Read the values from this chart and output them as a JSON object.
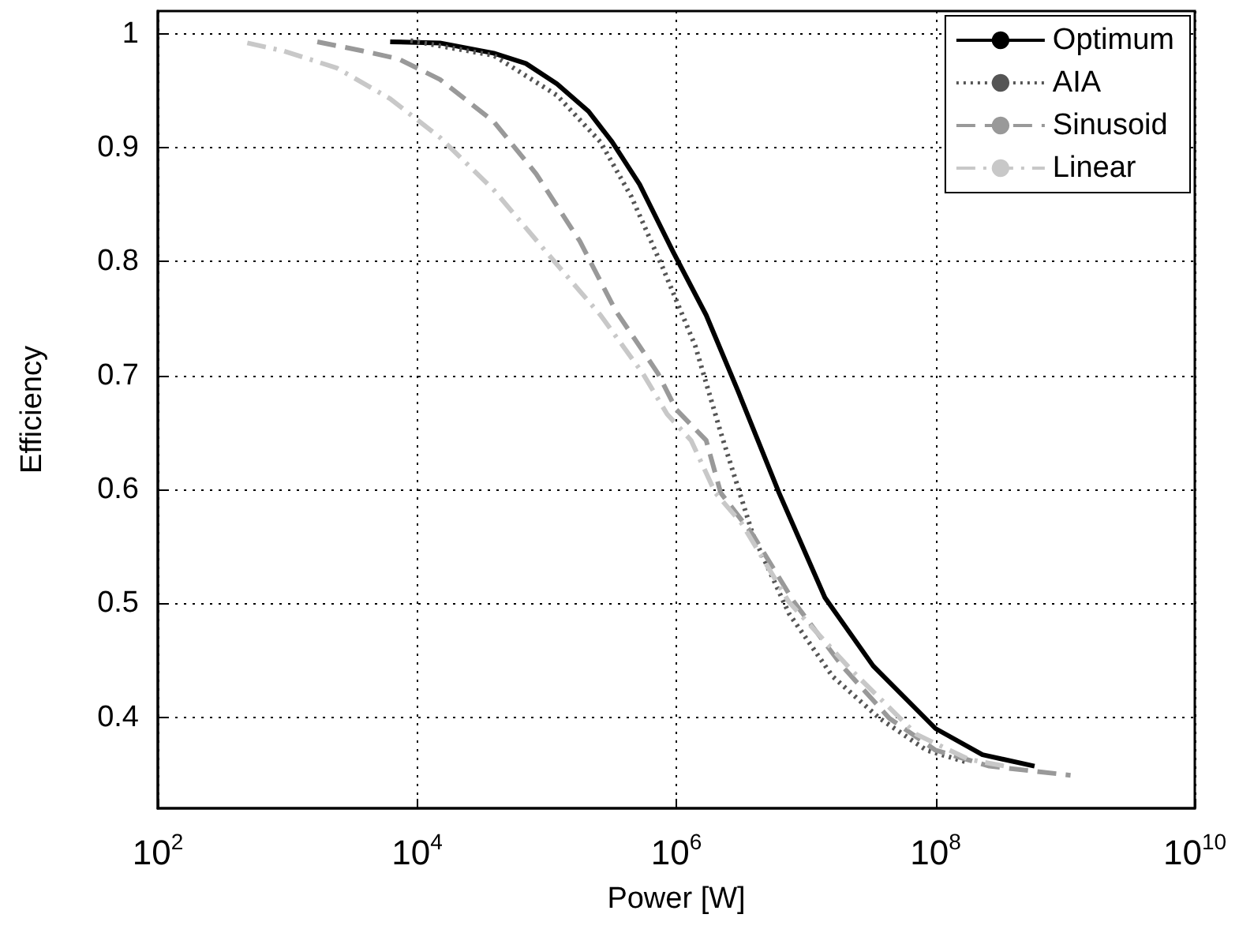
{
  "chart_data": {
    "type": "line",
    "xlabel": "Power [W]",
    "ylabel": "Efficiency",
    "log": "x",
    "grid": true,
    "legend": "top right",
    "xlim": [
      100,
      10000000000
    ],
    "xticks": [
      {
        "value": 100,
        "label": "10$^{2}$"
      },
      {
        "value": 10000,
        "label": "10$^{4}$"
      },
      {
        "value": 1000000,
        "label": "10$^{6}$"
      },
      {
        "value": 100000000,
        "label": "10$^{8}$"
      },
      {
        "value": 10000000000,
        "label": "10$^{10}$"
      }
    ],
    "ylim": [
      0.32,
      1.02
    ],
    "yticks": [
      0.4,
      0.5,
      0.6,
      0.7,
      0.8,
      0.9,
      1
    ],
    "series": [
      {
        "name": "Optimum",
        "color": "#000000",
        "line_style": "solid",
        "x": [
          6200.0,
          15000.0,
          39000.0,
          69000.0,
          120000.0,
          210000.0,
          320000.0,
          520000.0,
          950000.0,
          1700000.0,
          3000000.0,
          6200000.0,
          14000000.0,
          33000000.0,
          100000000.0,
          230000000.0,
          580000000.0
        ],
        "values": [
          0.993,
          0.992,
          0.983,
          0.974,
          0.956,
          0.932,
          0.905,
          0.868,
          0.808,
          0.753,
          0.686,
          0.597,
          0.505,
          0.445,
          0.39,
          0.367,
          0.357
        ]
      },
      {
        "name": "AIA",
        "color": "#555555",
        "line_style": "dotted",
        "x": [
          8900.0,
          39000.0,
          120000.0,
          260000.0,
          450000.0,
          790000.0,
          1400000.0,
          2200000.0,
          3900000.0,
          7400000.0,
          16000000.0,
          37000000.0,
          85000000.0,
          180000000.0
        ],
        "values": [
          0.994,
          0.981,
          0.946,
          0.905,
          0.857,
          0.794,
          0.726,
          0.65,
          0.56,
          0.491,
          0.436,
          0.399,
          0.371,
          0.36
        ]
      },
      {
        "name": "Sinusoid",
        "color": "#999999",
        "line_style": "dashed",
        "x": [
          1700.0,
          3800.0,
          7200.0,
          15000.0,
          39000.0,
          83000.0,
          180000.0,
          340000.0,
          720000.0,
          1000000.0,
          1700000.0,
          2200000.0,
          3900000.0,
          8100000.0,
          19000000.0,
          44000000.0,
          100000000.0,
          260000000.0,
          1100000000.0
        ],
        "values": [
          0.993,
          0.985,
          0.978,
          0.96,
          0.923,
          0.877,
          0.818,
          0.757,
          0.702,
          0.67,
          0.643,
          0.597,
          0.56,
          0.501,
          0.445,
          0.399,
          0.371,
          0.357,
          0.349
        ]
      },
      {
        "name": "Linear",
        "color": "#c8c8c8",
        "line_style": "dashdot",
        "x": [
          490,
          930,
          2400.0,
          6200.0,
          15000.0,
          39000.0,
          100000.0,
          260000.0,
          550000.0,
          850000.0,
          1300000.0,
          2000000.0,
          3200000.0,
          7400000.0,
          23000000.0,
          71000000.0,
          180000000.0,
          380000000.0
        ],
        "values": [
          0.992,
          0.985,
          0.97,
          0.943,
          0.909,
          0.863,
          0.808,
          0.753,
          0.702,
          0.666,
          0.643,
          0.597,
          0.57,
          0.501,
          0.44,
          0.385,
          0.363,
          0.356
        ]
      }
    ]
  }
}
